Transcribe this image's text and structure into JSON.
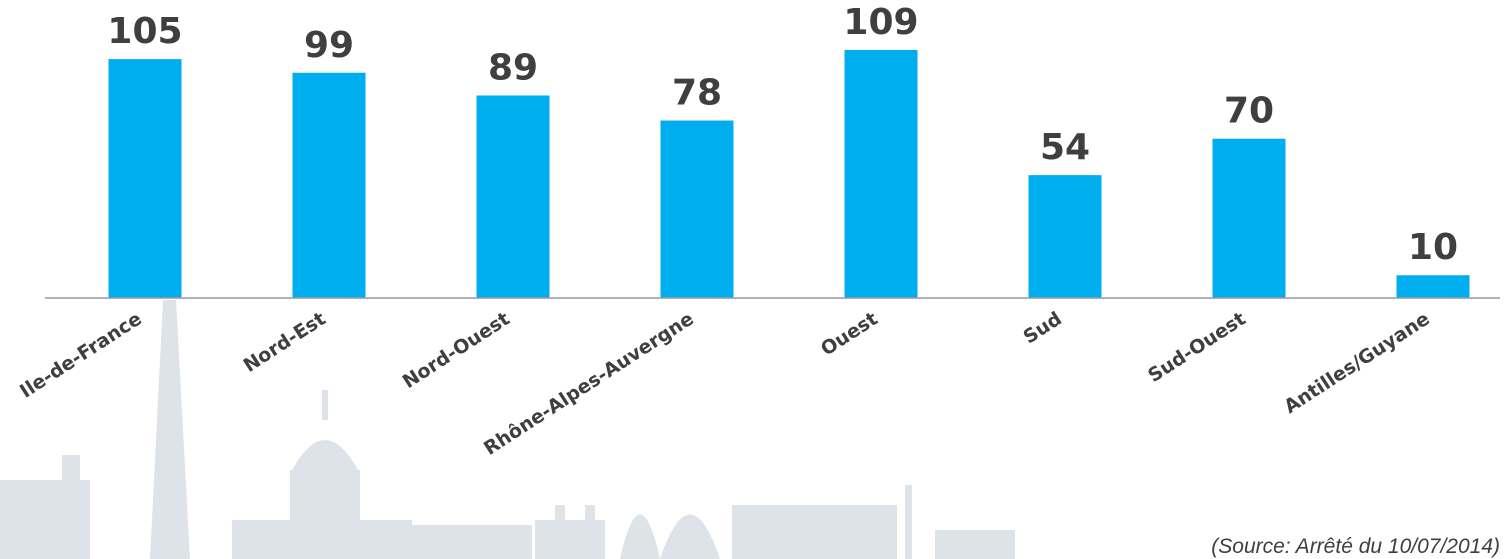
{
  "chart_data": {
    "type": "bar",
    "categories": [
      "Ile-de-France",
      "Nord-Est",
      "Nord-Ouest",
      "Rhône-Alpes-Auvergne",
      "Ouest",
      "Sud",
      "Sud-Ouest",
      "Antilles/Guyane"
    ],
    "values": [
      105,
      99,
      89,
      78,
      109,
      54,
      70,
      10
    ],
    "title": "",
    "xlabel": "",
    "ylabel": "",
    "ylim": [
      0,
      109
    ],
    "grid": false,
    "bar_color": "#00aeef",
    "data_labels": true
  },
  "source_note": "(Source: Arrêté du 10/07/2014)"
}
